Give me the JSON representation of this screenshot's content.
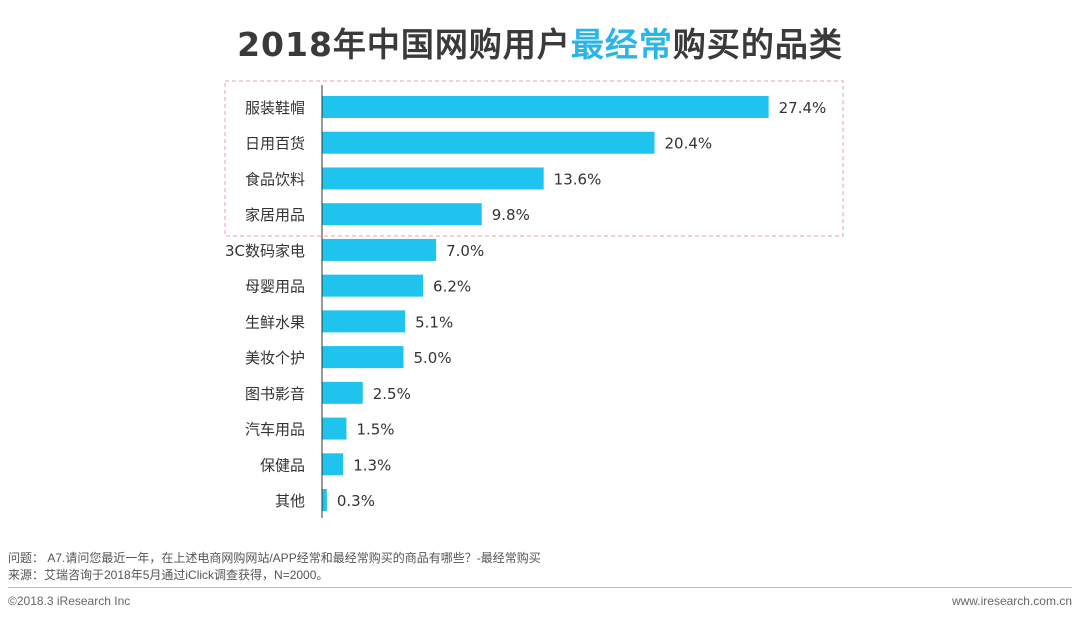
{
  "chart_data": {
    "type": "bar",
    "orientation": "horizontal",
    "title_parts": [
      "2018年中国网购用户",
      "最经常",
      "购买的品类"
    ],
    "categories": [
      "服装鞋帽",
      "日用百货",
      "食品饮料",
      "家居用品",
      "3C数码家电",
      "母婴用品",
      "生鲜水果",
      "美妆个护",
      "图书影音",
      "汽车用品",
      "保健品",
      "其他"
    ],
    "values": [
      27.4,
      20.4,
      13.6,
      9.8,
      7.0,
      6.2,
      5.1,
      5.0,
      2.5,
      1.5,
      1.3,
      0.3
    ],
    "labels": [
      "27.4%",
      "20.4%",
      "13.6%",
      "9.8%",
      "7.0%",
      "6.2%",
      "5.1%",
      "5.0%",
      "2.5%",
      "1.5%",
      "1.3%",
      "0.3%"
    ],
    "unit": "%",
    "highlighted_top": 4,
    "bar_color": "#1fc4ee",
    "highlight_color": "#29b6e6",
    "box_color": "#e8a0a8",
    "xlim": [
      0,
      30
    ],
    "grid": false
  },
  "notes": {
    "question": "问题：  A7.请问您最近一年，在上述电商网购网站/APP经常和最经常购买的商品有哪些？-最经常购买",
    "source": "来源：艾瑞咨询于2018年5月通过iClick调查获得，N=2000。"
  },
  "footer": {
    "copyright": "©2018.3 iResearch Inc",
    "website": "www.iresearch.com.cn"
  }
}
